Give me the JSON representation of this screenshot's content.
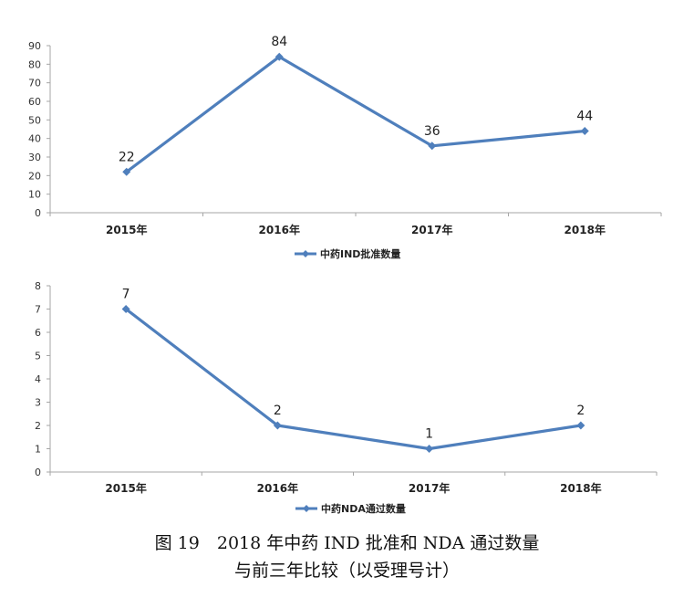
{
  "chart_data": [
    {
      "type": "line",
      "categories": [
        "2015年",
        "2016年",
        "2017年",
        "2018年"
      ],
      "series": [
        {
          "name": "中药IND批准数量",
          "values": [
            22,
            84,
            36,
            44
          ],
          "color": "#4F7FBC"
        }
      ],
      "data_labels": [
        "22",
        "84",
        "36",
        "44"
      ],
      "y_ticks": [
        "0",
        "10",
        "20",
        "30",
        "40",
        "50",
        "60",
        "70",
        "80",
        "90"
      ],
      "ylim": [
        0,
        90
      ],
      "legend": "bottom",
      "grid": false
    },
    {
      "type": "line",
      "categories": [
        "2015年",
        "2016年",
        "2017年",
        "2018年"
      ],
      "series": [
        {
          "name": "中药NDA通过数量",
          "values": [
            7,
            2,
            1,
            2
          ],
          "color": "#4F7FBC"
        }
      ],
      "data_labels": [
        "7",
        "2",
        "1",
        "2"
      ],
      "y_ticks": [
        "0",
        "1",
        "2",
        "3",
        "4",
        "5",
        "6",
        "7",
        "8"
      ],
      "ylim": [
        0,
        8
      ],
      "legend": "bottom",
      "grid": false
    }
  ],
  "caption": {
    "line1": "图 19　2018 年中药 IND 批准和 NDA 通过数量",
    "line2": "与前三年比较（以受理号计）"
  }
}
